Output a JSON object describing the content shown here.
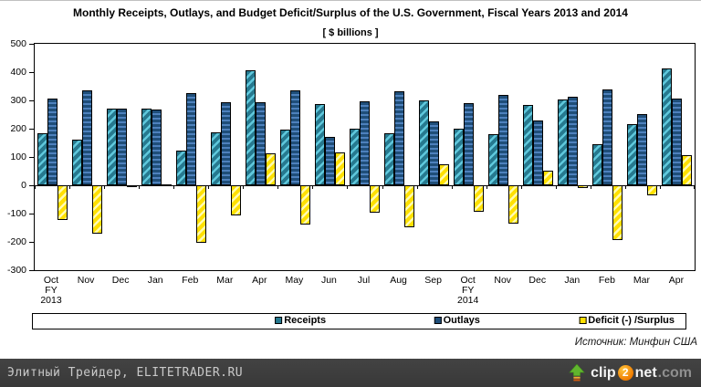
{
  "page": {
    "title": "Monthly Receipts, Outlays, and Budget Deficit/Surplus of the U.S. Government, Fiscal Years 2013 and 2014",
    "subtitle": "[ $ billions ]",
    "source_note": "Источник: Минфин США"
  },
  "chart_data": {
    "type": "bar",
    "title": "Monthly Receipts, Outlays, and Budget Deficit/Surplus of the U.S. Government, Fiscal Years 2013 and 2014",
    "subtitle": "[ $ billions ]",
    "xlabel": "",
    "ylabel": "$ billions",
    "ylim": [
      -300,
      500
    ],
    "ytick_step": 100,
    "grid": false,
    "legend_position": "bottom-box",
    "categories": [
      "Oct FY 2013",
      "Nov",
      "Dec",
      "Jan",
      "Feb",
      "Mar",
      "Apr",
      "May",
      "Jun",
      "Jul",
      "Aug",
      "Sep",
      "Oct FY 2014",
      "Nov",
      "Dec",
      "Jan",
      "Feb",
      "Mar",
      "Apr"
    ],
    "category_labels": [
      [
        "Oct",
        "FY",
        "2013"
      ],
      [
        "Nov"
      ],
      [
        "Dec"
      ],
      [
        "Jan"
      ],
      [
        "Feb"
      ],
      [
        "Mar"
      ],
      [
        "Apr"
      ],
      [
        "May"
      ],
      [
        "Jun"
      ],
      [
        "Jul"
      ],
      [
        "Aug"
      ],
      [
        "Sep"
      ],
      [
        "Oct",
        "FY",
        "2014"
      ],
      [
        "Nov"
      ],
      [
        "Dec"
      ],
      [
        "Jan"
      ],
      [
        "Feb"
      ],
      [
        "Mar"
      ],
      [
        "Apr"
      ]
    ],
    "series": [
      {
        "name": "Receipts",
        "pattern": "diagonal-stripes",
        "color_base": "#26798F",
        "color_stripe": "#5FC8DC",
        "values": [
          184,
          162,
          270,
          272,
          124,
          186,
          407,
          197,
          287,
          200,
          185,
          301,
          199,
          182,
          283,
          302,
          144,
          216,
          414
        ]
      },
      {
        "name": "Outlays",
        "pattern": "horizontal-stripes",
        "color_base": "#1F4E79",
        "color_stripe": "#4E81BD",
        "values": [
          307,
          334,
          270,
          269,
          326,
          293,
          294,
          336,
          170,
          298,
          333,
          226,
          291,
          318,
          230,
          312,
          338,
          253,
          307
        ]
      },
      {
        "name": "Deficit (-) /Surplus",
        "pattern": "diagonal-stripes",
        "color_base": "#FFE000",
        "color_stripe": "#FFFBB0",
        "values": [
          -123,
          -172,
          -1,
          3,
          -204,
          -107,
          113,
          -139,
          117,
          -98,
          -148,
          75,
          -92,
          -135,
          53,
          -10,
          -194,
          -37,
          107
        ]
      }
    ],
    "legend_item_centers_pct": [
      41,
      65,
      91
    ]
  },
  "footer": {
    "site_label": "Элитный Трейдер, ELITETRADER.RU",
    "logo": {
      "part1": "clip",
      "part2": "2",
      "part3": "net",
      "part4": ".com"
    }
  }
}
